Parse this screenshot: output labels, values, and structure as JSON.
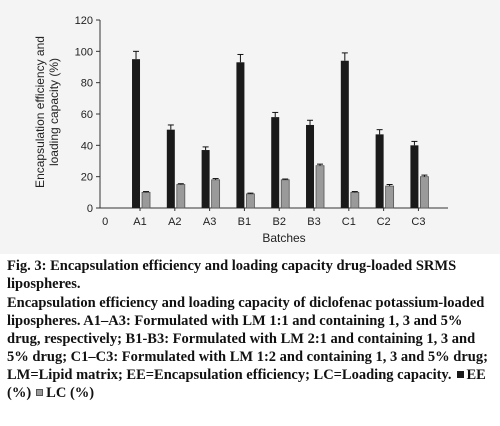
{
  "chart_data": {
    "type": "bar",
    "ylabel_lines": [
      "Encapsulation efficiency and",
      "loading capacity (%)"
    ],
    "xlabel": "Batches",
    "ylim": [
      0,
      120
    ],
    "yticks": [
      "0",
      "20",
      "40",
      "60",
      "80",
      "100",
      "120"
    ],
    "x_origin_label": "0",
    "categories": [
      "A1",
      "A2",
      "A3",
      "B1",
      "B2",
      "B3",
      "C1",
      "C2",
      "C3"
    ],
    "series": [
      {
        "name": "EE (%)",
        "color": "#1a1a1a",
        "values": [
          95,
          50,
          37,
          93,
          58,
          53,
          94,
          47,
          40
        ],
        "errors": [
          5,
          3,
          2,
          5,
          3,
          3,
          5,
          3,
          2.5
        ]
      },
      {
        "name": "LC (%)",
        "color": "#9a9a9a",
        "values": [
          10,
          15,
          18,
          9,
          18,
          27,
          10,
          14,
          20
        ],
        "errors": [
          0.5,
          0.5,
          0.8,
          0.5,
          0.5,
          1,
          0.5,
          1,
          1
        ]
      }
    ],
    "grid": false
  },
  "caption": {
    "title": "Fig. 3: Encapsulation efficiency and loading capacity drug-loaded SRMS lipospheres.",
    "body": "Encapsulation efficiency and loading capacity of diclofenac potassium-loaded lipospheres. A1–A3: Formulated with LM 1:1 and containing 1, 3 and 5% drug, respectively; B1-B3: Formulated with LM 2:1 and containing 1, 3 and 5% drug; C1–C3: Formulated with LM 1:2 and containing 1, 3 and 5% drug; LM=Lipid matrix; EE=Encapsulation efficiency; LC=Loading capacity.",
    "legend_ee": "EE (%)",
    "legend_lc": "LC (%)"
  }
}
